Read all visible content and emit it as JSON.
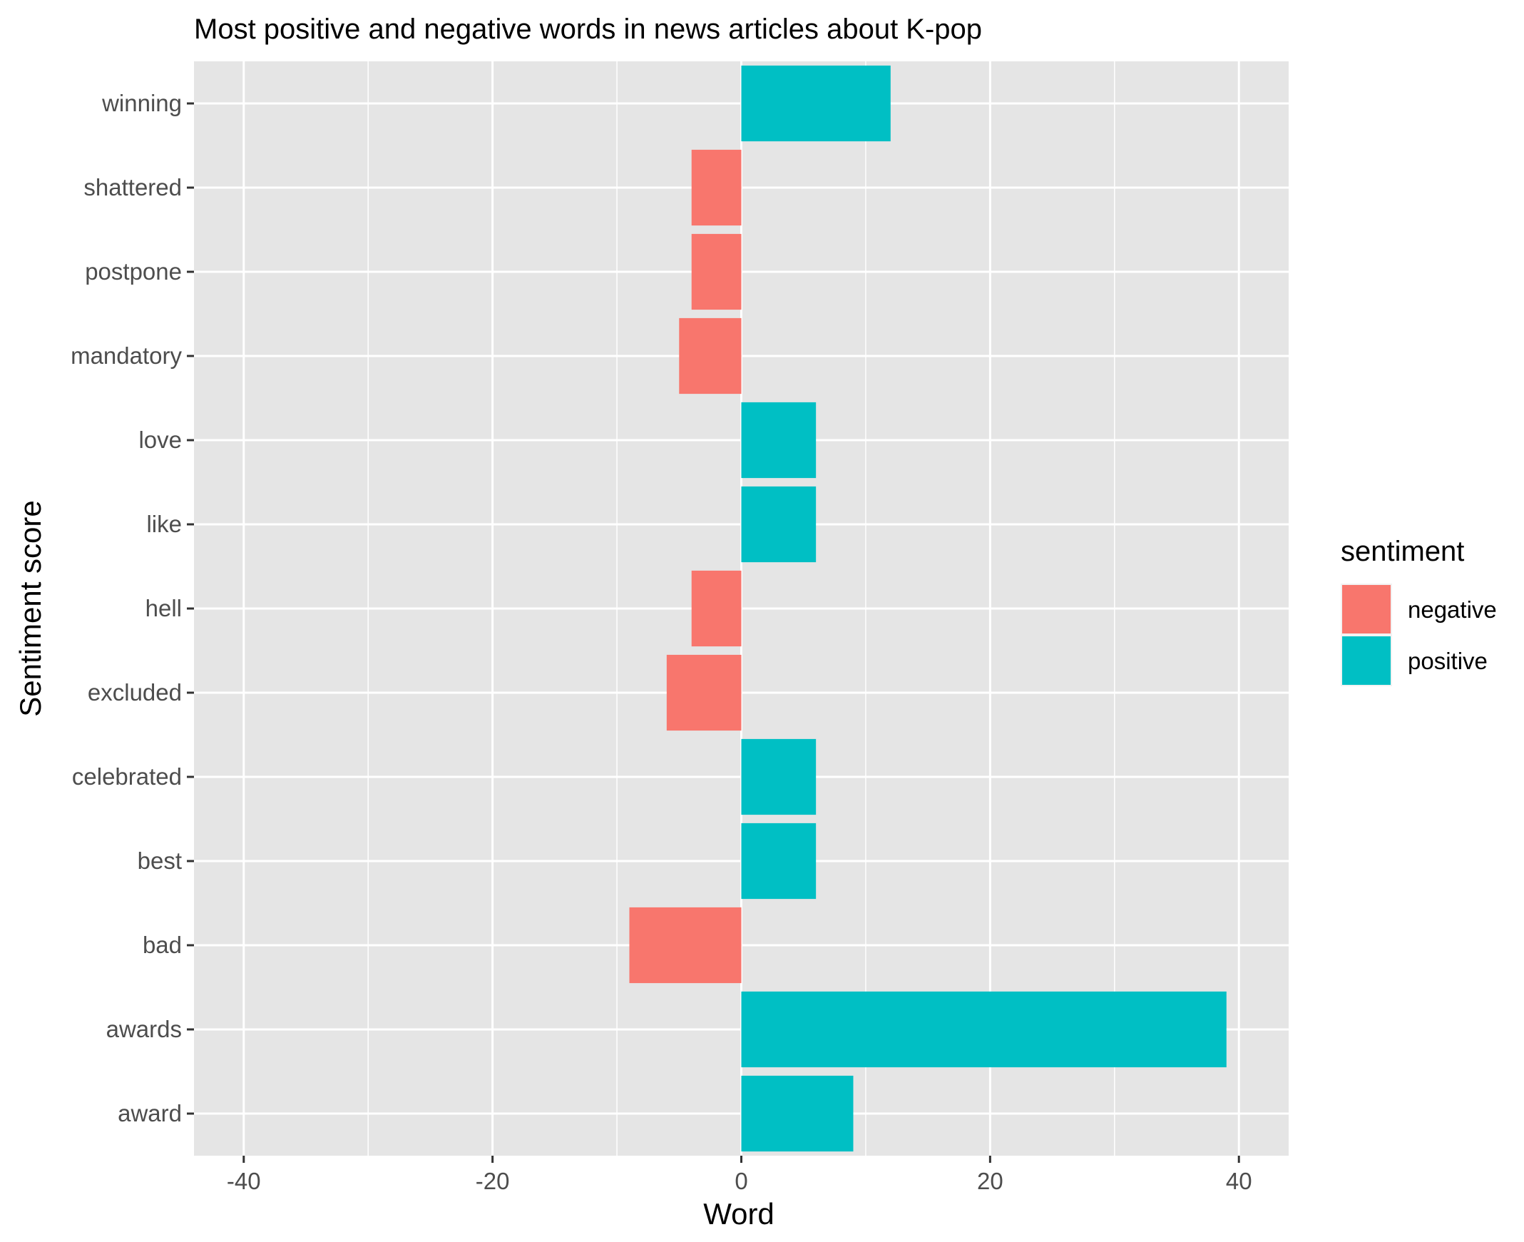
{
  "chart_data": {
    "type": "bar",
    "orientation": "horizontal",
    "title": "Most positive and negative words in news articles about K-pop",
    "xlabel": "Word",
    "ylabel": "Sentiment score",
    "xlim": [
      -44,
      44
    ],
    "x_ticks": [
      -40,
      -20,
      0,
      20,
      40
    ],
    "grid": true,
    "legend": {
      "title": "sentiment",
      "position": "right",
      "entries": [
        {
          "label": "negative",
          "color": "#F8766D"
        },
        {
          "label": "positive",
          "color": "#00BFC4"
        }
      ]
    },
    "categories": [
      "winning",
      "shattered",
      "postpone",
      "mandatory",
      "love",
      "like",
      "hell",
      "excluded",
      "celebrated",
      "best",
      "bad",
      "awards",
      "award"
    ],
    "values": [
      12,
      -4,
      -4,
      -5,
      6,
      6,
      -4,
      -6,
      6,
      6,
      -9,
      39,
      9
    ],
    "sentiment": [
      "positive",
      "negative",
      "negative",
      "negative",
      "positive",
      "positive",
      "negative",
      "negative",
      "positive",
      "positive",
      "negative",
      "positive",
      "positive"
    ],
    "colors": {
      "negative": "#F8766D",
      "positive": "#00BFC4",
      "panel": "#E5E5E5",
      "grid": "#FFFFFF"
    }
  }
}
